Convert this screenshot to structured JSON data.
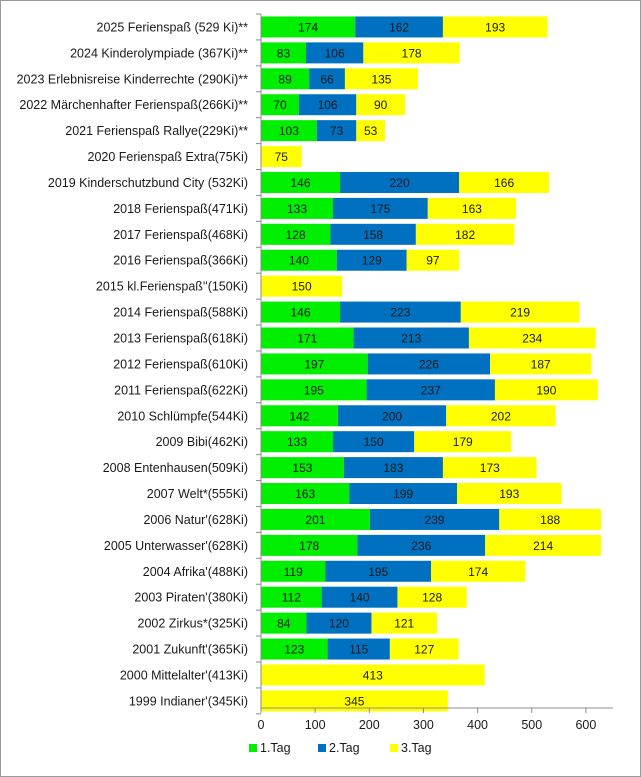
{
  "chart_data": {
    "type": "bar",
    "orientation": "horizontal",
    "stacked": true,
    "categories": [
      "2025 Ferienspaß (529 Ki)**",
      "2024 Kinderolympiade (367Ki)**",
      "2023 Erlebnisreise Kinderrechte (290Ki)**",
      "2022 Märchenhafter Ferienspaß(266Ki)**",
      "2021  Ferienspaß Rallye(229Ki)**",
      "2020  Ferienspaß Extra(75Ki)",
      "2019 Kinderschutzbund City (532Ki)",
      "2018 Ferienspaß(471Ki)",
      "2017 Ferienspaß(468Ki)",
      "2016 Ferienspaß(366Ki)",
      "2015 kl.Ferienspaß''(150Ki)",
      "2014 Ferienspaß(588Ki)",
      "2013 Ferienspaß(618Ki)",
      "2012 Ferienspaß(610Ki)",
      "2011 Ferienspaß(622Ki)",
      "2010 Schlümpfe(544Ki)",
      "2009 Bibi(462Ki)",
      "2008 Entenhausen(509Ki)",
      "2007 Welt*(555Ki)",
      "2006 Natur'(628Ki)",
      "2005 Unterwasser'(628Ki)",
      "2004 Afrika'(488Ki)",
      "2003 Piraten'(380Ki)",
      "2002 Zirkus*(325Ki)",
      "2001 Zukunft'(365Ki)",
      "2000 Mittelalter'(413Ki)",
      "1999 Indianer'(345Ki)"
    ],
    "series": [
      {
        "name": "1.Tag",
        "color": "#00ee00",
        "values": [
          174,
          83,
          89,
          70,
          103,
          null,
          146,
          133,
          128,
          140,
          null,
          146,
          171,
          197,
          195,
          142,
          133,
          153,
          163,
          201,
          178,
          119,
          112,
          84,
          123,
          null,
          null
        ]
      },
      {
        "name": "2.Tag",
        "color": "#0070c0",
        "values": [
          162,
          106,
          66,
          106,
          73,
          null,
          220,
          175,
          158,
          129,
          null,
          223,
          213,
          226,
          237,
          200,
          150,
          183,
          199,
          239,
          236,
          195,
          140,
          120,
          115,
          null,
          null
        ]
      },
      {
        "name": "3.Tag",
        "color": "#ffff00",
        "values": [
          193,
          178,
          135,
          90,
          53,
          75,
          166,
          163,
          182,
          97,
          150,
          219,
          234,
          187,
          190,
          202,
          179,
          173,
          193,
          188,
          214,
          174,
          128,
          121,
          127,
          413,
          345
        ]
      }
    ],
    "xlim": [
      0,
      650
    ],
    "xticks": [
      0,
      100,
      200,
      300,
      400,
      500,
      600
    ],
    "grid": false,
    "legend": "bottom"
  }
}
